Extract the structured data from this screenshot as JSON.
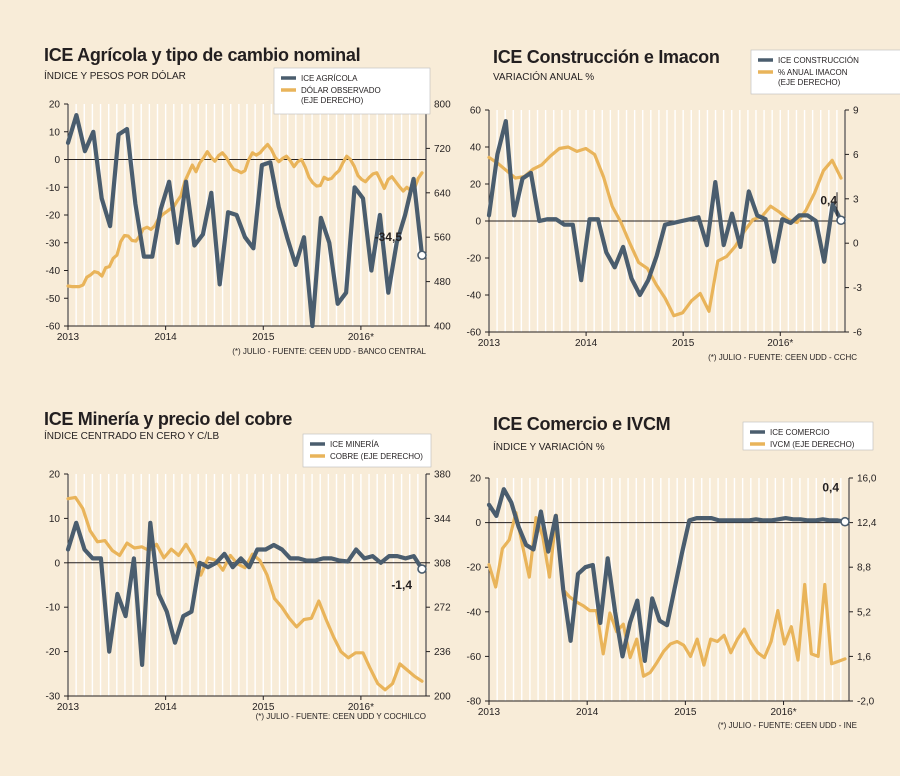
{
  "chart_data": [
    {
      "id": "agricola",
      "type": "line",
      "title": "ICE Agrícola y tipo de cambio nominal",
      "subtitle": "ÍNDICE Y PESOS POR DÓLAR",
      "note": "(*) JULIO - FUENTE: CEEN UDD - BANCO CENTRAL",
      "x_labels": [
        "2013",
        "2014",
        "2015",
        "2016*"
      ],
      "ylim_left": [
        -60,
        20
      ],
      "yticks_left": [
        20,
        10,
        0,
        -10,
        -20,
        -30,
        -40,
        -50,
        -60
      ],
      "ylim_right": [
        400,
        800
      ],
      "yticks_right": [
        800,
        720,
        640,
        560,
        480,
        400
      ],
      "callout": "-34,5",
      "series": [
        {
          "name": "ICE AGRÍCOLA",
          "color": "#4a5d6e",
          "axis": "left",
          "values": [
            6,
            16,
            3,
            10,
            -14,
            -24,
            9,
            11,
            -16,
            -35,
            -35,
            -18,
            -8,
            -30,
            -8,
            -31,
            -27,
            -12,
            -45,
            -19,
            -20,
            -28,
            -32,
            -2,
            -1,
            -17,
            -28,
            -38,
            -28,
            -60,
            -21,
            -30,
            -52,
            -48,
            -10,
            -14,
            -40,
            -20,
            -48,
            -30,
            -20,
            -7,
            -34.5
          ]
        },
        {
          "name": "DÓLAR OBSERVADO (EJE DERECHO)",
          "color": "#e9b45a",
          "axis": "right",
          "values": [
            472,
            471,
            471,
            471,
            474,
            488,
            492,
            498,
            496,
            490,
            505,
            507,
            522,
            528,
            552,
            563,
            562,
            554,
            553,
            562,
            575,
            578,
            574,
            580,
            593,
            600,
            605,
            610,
            614,
            625,
            635,
            660,
            675,
            690,
            678,
            694,
            703,
            714,
            704,
            697,
            707,
            712,
            704,
            692,
            682,
            680,
            676,
            680,
            700,
            712,
            708,
            712,
            720,
            727,
            718,
            704,
            696,
            702,
            706,
            698,
            687,
            696,
            700,
            686,
            668,
            658,
            652,
            653,
            668,
            664,
            666,
            674,
            680,
            694,
            706,
            700,
            688,
            671,
            664,
            660,
            668,
            674,
            676,
            662,
            648,
            664,
            669,
            660,
            651,
            643,
            650,
            644,
            648,
            666,
            676
          ]
        }
      ]
    },
    {
      "id": "construccion",
      "type": "line",
      "title": "ICE Construcción e Imacon",
      "subtitle": "VARIACIÓN ANUAL %",
      "note": "(*) JULIO - FUENTE: CEEN UDD - CCHC",
      "x_labels": [
        "2013",
        "2014",
        "2015",
        "2016*"
      ],
      "ylim_left": [
        -60,
        60
      ],
      "yticks_left": [
        60,
        40,
        20,
        0,
        -20,
        -40,
        -60
      ],
      "ylim_right": [
        -6,
        9
      ],
      "yticks_right": [
        9,
        6,
        3,
        0,
        -3,
        -6
      ],
      "callout": "0,4",
      "series": [
        {
          "name": "ICE CONSTRUCCIÓN",
          "color": "#4a5d6e",
          "axis": "left",
          "values": [
            3,
            36,
            54,
            3,
            23,
            26,
            0,
            1,
            1,
            -2,
            -2,
            -32,
            1,
            1,
            -17,
            -25,
            -14,
            -31,
            -40,
            -32,
            -19,
            -2,
            -1,
            0,
            1,
            2,
            -13,
            21,
            -13,
            4,
            -14,
            16,
            3,
            1,
            -22,
            1,
            -1,
            3,
            3,
            0,
            -22,
            9,
            0.4
          ]
        },
        {
          "name": "% ANUAL IMACON (EJE DERECHO)",
          "color": "#e9b45a",
          "axis": "right",
          "values": [
            5.8,
            5.4,
            4.9,
            4.4,
            4.5,
            5.0,
            5.3,
            5.9,
            6.4,
            6.5,
            6.2,
            6.4,
            6.0,
            4.5,
            2.5,
            1.4,
            0.0,
            -1.3,
            -1.7,
            -2.8,
            -3.7,
            -4.9,
            -4.7,
            -3.9,
            -3.4,
            -4.6,
            -1.2,
            -0.9,
            -0.2,
            0.8,
            1.6,
            1.8,
            2.5,
            2.1,
            1.6,
            1.4,
            2.2,
            3.4,
            4.9,
            5.6,
            4.4
          ]
        }
      ]
    },
    {
      "id": "mineria",
      "type": "line",
      "title": "ICE Minería y precio del cobre",
      "subtitle": "ÍNDICE CENTRADO EN CERO Y C/LB",
      "note": "(*) JULIO - FUENTE: CEEN UDD Y COCHILCO",
      "x_labels": [
        "2013",
        "2014",
        "2015",
        "2016*"
      ],
      "ylim_left": [
        -30,
        20
      ],
      "yticks_left": [
        20,
        10,
        0,
        -10,
        -20,
        -30
      ],
      "ylim_right": [
        200,
        380
      ],
      "yticks_right": [
        380,
        344,
        308,
        272,
        236,
        200
      ],
      "callout": "-1,4",
      "series": [
        {
          "name": "ICE MINERÍA",
          "color": "#4a5d6e",
          "axis": "left",
          "values": [
            3,
            9,
            3,
            1,
            1,
            -20,
            -7,
            -12,
            1,
            -23,
            9,
            -7,
            -11,
            -18,
            -12,
            -11,
            0,
            -1,
            0,
            2,
            -1,
            1,
            -1,
            3,
            3,
            4,
            3,
            1,
            1,
            0.5,
            0.5,
            1,
            1,
            0.5,
            0.3,
            3,
            1,
            1.5,
            0,
            1.5,
            1.5,
            1,
            1.5,
            -1.4
          ]
        },
        {
          "name": "COBRE (EJE DERECHO)",
          "color": "#e9b45a",
          "axis": "right",
          "values": [
            360,
            361,
            352,
            334,
            325,
            326,
            318,
            314,
            324,
            320,
            321,
            318,
            323,
            312,
            319,
            314,
            323,
            313,
            298,
            312,
            310,
            302,
            314,
            307,
            304,
            315,
            310,
            298,
            279,
            272,
            263,
            256,
            262,
            263,
            277,
            262,
            248,
            236,
            231,
            235,
            235,
            222,
            210,
            205,
            210,
            226,
            221,
            216,
            212
          ]
        }
      ]
    },
    {
      "id": "comercio",
      "type": "line",
      "title": "ICE Comercio e IVCM",
      "subtitle": "ÍNDICE Y VARIACIÓN %",
      "note": "(*) JULIO - FUENTE: CEEN UDD - INE",
      "x_labels": [
        "2013",
        "2014",
        "2015",
        "2016*"
      ],
      "ylim_left": [
        -80,
        20
      ],
      "yticks_left": [
        20,
        0,
        -20,
        -40,
        -60,
        -80
      ],
      "ylim_right": [
        -2,
        16
      ],
      "yticks_right": [
        16.0,
        12.4,
        8.8,
        5.2,
        1.6,
        -2.0
      ],
      "callout": "0,4",
      "series": [
        {
          "name": "ICE COMERCIO",
          "color": "#4a5d6e",
          "axis": "left",
          "values": [
            8,
            3,
            15,
            9,
            -2,
            -10,
            -12,
            5,
            -13,
            3,
            -30,
            -53,
            -23,
            -20,
            -19,
            -45,
            -16,
            -40,
            -60,
            -45,
            -35,
            -62,
            -34,
            -44,
            -46,
            -30,
            -14,
            1,
            2,
            2,
            2,
            1,
            1,
            1,
            1,
            1,
            1.5,
            1,
            1,
            1.5,
            2,
            1.5,
            1.5,
            1,
            1,
            1.5,
            1,
            1,
            0.4
          ]
        },
        {
          "name": "IVCM (EJE DERECHO)",
          "color": "#e9b45a",
          "axis": "right",
          "values": [
            9.0,
            7.2,
            10.3,
            11.0,
            13.2,
            10.5,
            8.0,
            12.8,
            11.3,
            8.0,
            13.0,
            7.0,
            6.4,
            6.0,
            5.7,
            5.3,
            5.3,
            1.8,
            5.1,
            3.6,
            4.2,
            1.5,
            3.0,
            0.0,
            0.3,
            1.1,
            2.0,
            2.6,
            2.8,
            2.5,
            1.6,
            3.0,
            0.9,
            3.0,
            2.8,
            3.3,
            1.9,
            3.0,
            3.8,
            2.7,
            1.9,
            1.5,
            2.8,
            5.3,
            2.6,
            4.0,
            1.3,
            7.4,
            1.8,
            1.6,
            7.4,
            1.0,
            1.2,
            1.4
          ]
        }
      ]
    }
  ]
}
